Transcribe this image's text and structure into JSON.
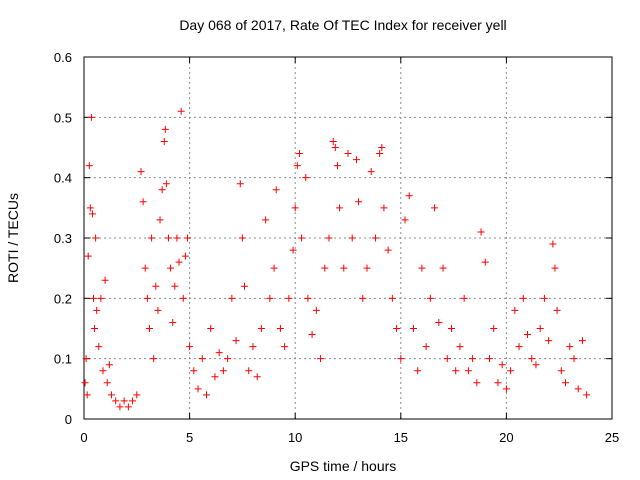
{
  "chart_data": {
    "type": "scatter",
    "title": "Day 068 of 2017, Rate Of TEC Index for receiver yell",
    "xlabel": "GPS time / hours",
    "ylabel": "ROTI / TECUs",
    "xlim": [
      0,
      25
    ],
    "ylim": [
      0,
      0.6
    ],
    "xticks": [
      "0",
      "5",
      "10",
      "15",
      "20",
      "25"
    ],
    "yticks": [
      "0",
      "0.1",
      "0.2",
      "0.3",
      "0.4",
      "0.5",
      "0.6"
    ],
    "grid": true,
    "marker": "+",
    "color": "#ff0000",
    "series": [
      {
        "name": "",
        "points": [
          [
            0.05,
            0.06
          ],
          [
            0.1,
            0.1
          ],
          [
            0.15,
            0.04
          ],
          [
            0.2,
            0.27
          ],
          [
            0.25,
            0.42
          ],
          [
            0.3,
            0.35
          ],
          [
            0.35,
            0.5
          ],
          [
            0.4,
            0.34
          ],
          [
            0.45,
            0.2
          ],
          [
            0.5,
            0.15
          ],
          [
            0.55,
            0.3
          ],
          [
            0.6,
            0.18
          ],
          [
            0.7,
            0.12
          ],
          [
            0.8,
            0.2
          ],
          [
            0.9,
            0.08
          ],
          [
            1.0,
            0.23
          ],
          [
            1.1,
            0.06
          ],
          [
            1.2,
            0.09
          ],
          [
            1.3,
            0.04
          ],
          [
            1.5,
            0.03
          ],
          [
            1.7,
            0.02
          ],
          [
            1.9,
            0.03
          ],
          [
            2.1,
            0.02
          ],
          [
            2.3,
            0.03
          ],
          [
            2.5,
            0.04
          ],
          [
            2.7,
            0.41
          ],
          [
            2.8,
            0.36
          ],
          [
            2.9,
            0.25
          ],
          [
            3.0,
            0.2
          ],
          [
            3.1,
            0.15
          ],
          [
            3.2,
            0.3
          ],
          [
            3.3,
            0.1
          ],
          [
            3.4,
            0.22
          ],
          [
            3.5,
            0.18
          ],
          [
            3.6,
            0.33
          ],
          [
            3.7,
            0.38
          ],
          [
            3.8,
            0.46
          ],
          [
            3.85,
            0.48
          ],
          [
            3.9,
            0.39
          ],
          [
            4.0,
            0.3
          ],
          [
            4.1,
            0.25
          ],
          [
            4.2,
            0.16
          ],
          [
            4.3,
            0.22
          ],
          [
            4.4,
            0.3
          ],
          [
            4.5,
            0.26
          ],
          [
            4.6,
            0.51
          ],
          [
            4.7,
            0.2
          ],
          [
            4.8,
            0.27
          ],
          [
            4.9,
            0.3
          ],
          [
            5.0,
            0.12
          ],
          [
            5.2,
            0.08
          ],
          [
            5.4,
            0.05
          ],
          [
            5.6,
            0.1
          ],
          [
            5.8,
            0.04
          ],
          [
            6.0,
            0.15
          ],
          [
            6.2,
            0.07
          ],
          [
            6.4,
            0.11
          ],
          [
            6.6,
            0.08
          ],
          [
            6.8,
            0.1
          ],
          [
            7.0,
            0.2
          ],
          [
            7.2,
            0.13
          ],
          [
            7.4,
            0.39
          ],
          [
            7.5,
            0.3
          ],
          [
            7.6,
            0.22
          ],
          [
            7.8,
            0.08
          ],
          [
            8.0,
            0.12
          ],
          [
            8.2,
            0.07
          ],
          [
            8.4,
            0.15
          ],
          [
            8.6,
            0.33
          ],
          [
            8.8,
            0.2
          ],
          [
            9.0,
            0.25
          ],
          [
            9.1,
            0.38
          ],
          [
            9.3,
            0.15
          ],
          [
            9.5,
            0.12
          ],
          [
            9.7,
            0.2
          ],
          [
            9.9,
            0.28
          ],
          [
            10.0,
            0.35
          ],
          [
            10.1,
            0.42
          ],
          [
            10.2,
            0.44
          ],
          [
            10.3,
            0.3
          ],
          [
            10.5,
            0.4
          ],
          [
            10.6,
            0.2
          ],
          [
            10.8,
            0.14
          ],
          [
            11.0,
            0.18
          ],
          [
            11.2,
            0.1
          ],
          [
            11.4,
            0.25
          ],
          [
            11.6,
            0.3
          ],
          [
            11.8,
            0.46
          ],
          [
            11.9,
            0.45
          ],
          [
            12.0,
            0.42
          ],
          [
            12.1,
            0.35
          ],
          [
            12.3,
            0.25
          ],
          [
            12.5,
            0.44
          ],
          [
            12.7,
            0.3
          ],
          [
            12.9,
            0.43
          ],
          [
            13.0,
            0.36
          ],
          [
            13.2,
            0.2
          ],
          [
            13.4,
            0.25
          ],
          [
            13.6,
            0.41
          ],
          [
            13.8,
            0.3
          ],
          [
            14.0,
            0.44
          ],
          [
            14.1,
            0.45
          ],
          [
            14.2,
            0.35
          ],
          [
            14.4,
            0.28
          ],
          [
            14.6,
            0.2
          ],
          [
            14.8,
            0.15
          ],
          [
            15.0,
            0.1
          ],
          [
            15.2,
            0.33
          ],
          [
            15.4,
            0.37
          ],
          [
            15.6,
            0.15
          ],
          [
            15.8,
            0.08
          ],
          [
            16.0,
            0.25
          ],
          [
            16.2,
            0.12
          ],
          [
            16.4,
            0.2
          ],
          [
            16.6,
            0.35
          ],
          [
            16.8,
            0.16
          ],
          [
            17.0,
            0.25
          ],
          [
            17.2,
            0.1
          ],
          [
            17.4,
            0.15
          ],
          [
            17.6,
            0.08
          ],
          [
            17.8,
            0.12
          ],
          [
            18.0,
            0.2
          ],
          [
            18.2,
            0.08
          ],
          [
            18.4,
            0.1
          ],
          [
            18.6,
            0.06
          ],
          [
            18.8,
            0.31
          ],
          [
            19.0,
            0.26
          ],
          [
            19.2,
            0.1
          ],
          [
            19.4,
            0.15
          ],
          [
            19.6,
            0.06
          ],
          [
            19.8,
            0.09
          ],
          [
            20.0,
            0.05
          ],
          [
            20.2,
            0.08
          ],
          [
            20.4,
            0.18
          ],
          [
            20.6,
            0.12
          ],
          [
            20.8,
            0.2
          ],
          [
            21.0,
            0.14
          ],
          [
            21.2,
            0.1
          ],
          [
            21.4,
            0.09
          ],
          [
            21.6,
            0.15
          ],
          [
            21.8,
            0.2
          ],
          [
            22.0,
            0.13
          ],
          [
            22.2,
            0.29
          ],
          [
            22.3,
            0.25
          ],
          [
            22.4,
            0.18
          ],
          [
            22.6,
            0.08
          ],
          [
            22.8,
            0.06
          ],
          [
            23.0,
            0.12
          ],
          [
            23.2,
            0.1
          ],
          [
            23.4,
            0.05
          ],
          [
            23.6,
            0.13
          ],
          [
            23.8,
            0.04
          ]
        ]
      }
    ]
  }
}
